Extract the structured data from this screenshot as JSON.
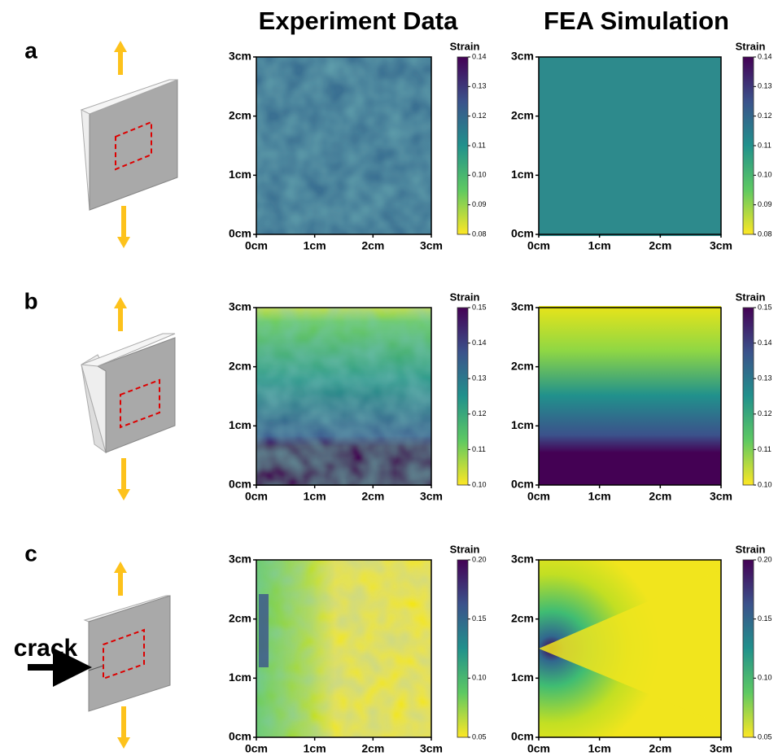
{
  "column_titles": [
    "Experiment Data",
    "FEA Simulation"
  ],
  "axis_ticks": [
    "0cm",
    "1cm",
    "2cm",
    "3cm"
  ],
  "colorbar_label": "Strain",
  "crack_label": "crack",
  "rows": [
    {
      "label": "a",
      "colorbar_ticks": [
        "0.14",
        "0.13",
        "0.12",
        "0.11",
        "0.10",
        "0.09",
        "0.08"
      ]
    },
    {
      "label": "b",
      "colorbar_ticks": [
        "0.15",
        "0.14",
        "0.13",
        "0.12",
        "0.11",
        "0.10"
      ]
    },
    {
      "label": "c",
      "colorbar_ticks": [
        "0.20",
        "0.15",
        "0.10",
        "0.05"
      ]
    }
  ]
}
